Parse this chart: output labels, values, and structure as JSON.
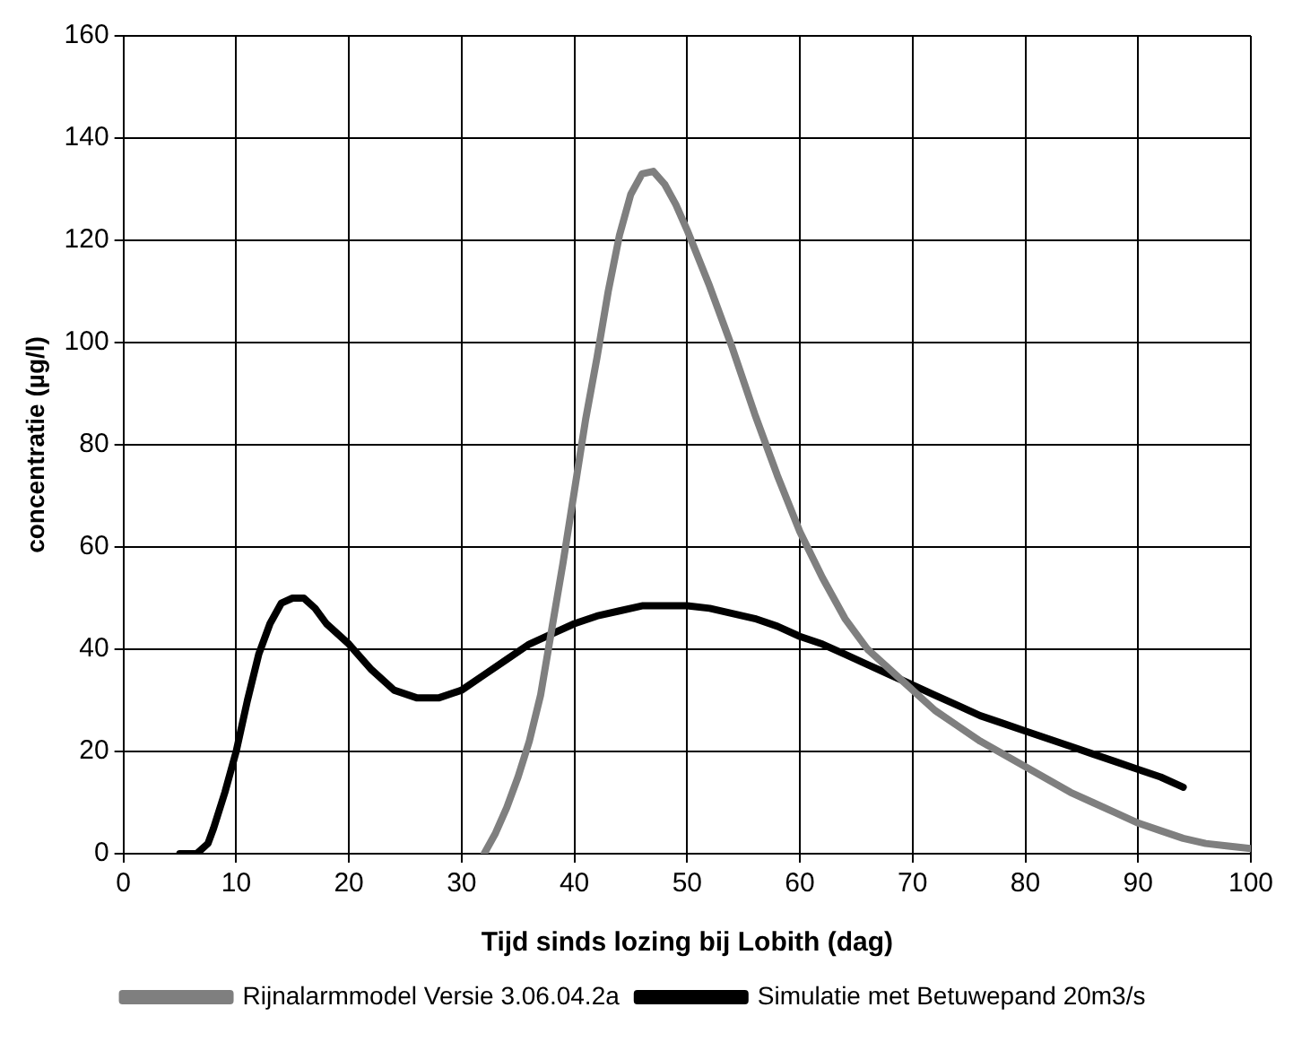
{
  "chart_data": {
    "type": "line",
    "xlabel": "Tijd sinds lozing bij Lobith (dag)",
    "ylabel": "concentratie (µg/l)",
    "xlim": [
      0,
      100
    ],
    "xticks": [
      0,
      10,
      20,
      30,
      40,
      50,
      60,
      70,
      80,
      90,
      100
    ],
    "ylim": [
      0,
      160
    ],
    "yticks": [
      0,
      20,
      40,
      60,
      80,
      100,
      120,
      140,
      160
    ],
    "grid": true,
    "legend": "bottom",
    "marker": "none",
    "line_style": "solid",
    "series": [
      {
        "name": "Rijnalarmmodel Versie 3.06.04.2a",
        "color": "#7f7f7f",
        "x": [
          32,
          33,
          34,
          35,
          36,
          37,
          38,
          39,
          40,
          41,
          42,
          43,
          44,
          45,
          46,
          47,
          48,
          49,
          50,
          52,
          54,
          56,
          58,
          60,
          62,
          64,
          66,
          68,
          70,
          72,
          74,
          76,
          78,
          80,
          82,
          84,
          86,
          88,
          90,
          92,
          94,
          96,
          98,
          100
        ],
        "values": [
          0,
          4,
          9,
          15,
          22,
          31,
          44,
          57,
          71,
          85,
          97,
          110,
          121,
          129,
          133,
          133.5,
          131,
          127,
          122,
          111,
          99,
          86,
          74,
          63,
          54,
          46,
          40,
          36,
          32,
          28,
          25,
          22,
          19.5,
          17,
          14.5,
          12,
          10,
          8,
          6,
          4.5,
          3,
          2,
          1.5,
          1
        ]
      },
      {
        "name": "Simulatie met Betuwepand 20m3/s",
        "color": "#000000",
        "x": [
          5,
          6.5,
          7.5,
          8,
          9,
          10,
          11,
          12,
          13,
          14,
          15,
          16,
          17,
          18,
          20,
          22,
          24,
          26,
          28,
          30,
          32,
          34,
          36,
          38,
          40,
          42,
          44,
          46,
          48,
          50,
          52,
          54,
          56,
          58,
          60,
          62,
          64,
          66,
          68,
          70,
          72,
          74,
          76,
          78,
          80,
          82,
          84,
          86,
          88,
          90,
          92,
          94
        ],
        "values": [
          0,
          0,
          2,
          5,
          12,
          20,
          30,
          39,
          45,
          49,
          50,
          50,
          48,
          45,
          41,
          36,
          32,
          30.5,
          30.5,
          32,
          35,
          38,
          41,
          43,
          45,
          46.5,
          47.5,
          48.5,
          48.5,
          48.5,
          48,
          47,
          46,
          44.5,
          42.5,
          41,
          39,
          37,
          35,
          33,
          31,
          29,
          27,
          25.5,
          24,
          22.5,
          21,
          19.5,
          18,
          16.5,
          15,
          13
        ]
      }
    ]
  }
}
